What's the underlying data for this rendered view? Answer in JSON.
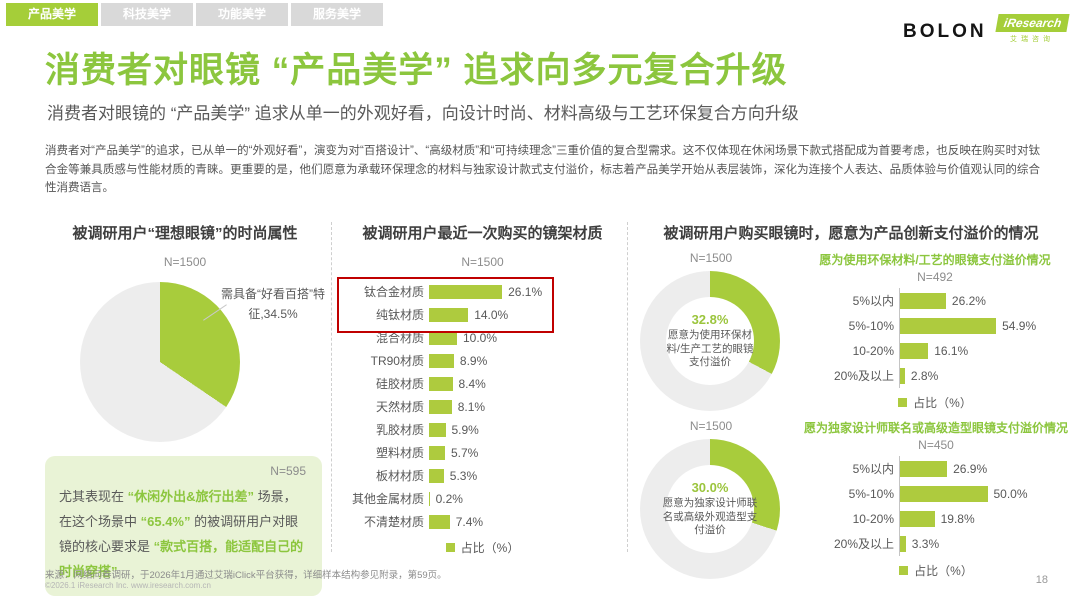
{
  "colors": {
    "accent_green": "#a5ce39",
    "bar_green": "#aecb3e",
    "title_green": "#8cc63e",
    "chart_green": "#a8cc3c",
    "chart_gray": "#ededed",
    "highlight_red": "#c00000",
    "inactive_tab": "#d9d9d9"
  },
  "tabs": [
    {
      "label": "产品美学",
      "active": true
    },
    {
      "label": "科技美学",
      "active": false
    },
    {
      "label": "功能美学",
      "active": false
    },
    {
      "label": "服务美学",
      "active": false
    }
  ],
  "brand": {
    "bolon": "BOLON",
    "iresearch": "iResearch",
    "iresearch_cn": "艾瑞咨询"
  },
  "header": {
    "title": "消费者对眼镜 “产品美学” 追求向多元复合升级",
    "subtitle": "消费者对眼镜的 “产品美学” 追求从单一的外观好看，向设计时尚、材料高级与工艺环保复合方向升级",
    "paragraph": "消费者对“产品美学”的追求，已从单一的“外观好看”，演变为对“百搭设计”、“高级材质”和“可持续理念”三重价值的复合型需求。这不仅体现在休闲场景下款式搭配成为首要考虑，也反映在购买时对钛合金等兼具质感与性能材质的青睐。更重要的是，他们愿意为承载环保理念的材料与独家设计款式支付溢价，标志着产品美学开始从表层装饰，深化为连接个人表达、品质体验与价值观认同的综合性消费语言。"
  },
  "fashion": {
    "title": "被调研用户“理想眼镜”的时尚属性",
    "n": "N=1500",
    "pie_value": 34.5,
    "pie_label": "需具备“好看百搭”特征,34.5%",
    "insight": {
      "n": "N=595",
      "p1": "尤其表现在 ",
      "p2": "“休闲外出&旅行出差”",
      "p3": " 场景，在这个场景中 ",
      "p4": "“65.4%”",
      "p5": " 的被调研用户对眼镜的核心要求是 ",
      "p6": "“款式百搭，能适配自己的时尚穿搭”"
    }
  },
  "materials": {
    "title": "被调研用户最近一次购买的镜架材质",
    "n": "N=1500",
    "legend": "占比（%）",
    "items": [
      {
        "label": "钛合金材质",
        "value": 26.1,
        "display": "26.1%"
      },
      {
        "label": "纯钛材质",
        "value": 14.0,
        "display": "14.0%"
      },
      {
        "label": "混合材质",
        "value": 10.0,
        "display": "10.0%"
      },
      {
        "label": "TR90材质",
        "value": 8.9,
        "display": "8.9%"
      },
      {
        "label": "硅胶材质",
        "value": 8.4,
        "display": "8.4%"
      },
      {
        "label": "天然材质",
        "value": 8.1,
        "display": "8.1%"
      },
      {
        "label": "乳胶材质",
        "value": 5.9,
        "display": "5.9%"
      },
      {
        "label": "塑料材质",
        "value": 5.7,
        "display": "5.7%"
      },
      {
        "label": "板材材质",
        "value": 5.3,
        "display": "5.3%"
      },
      {
        "label": "其他金属材质",
        "value": 0.2,
        "display": "0.2%"
      },
      {
        "label": "不清楚材质",
        "value": 7.4,
        "display": "7.4%"
      }
    ]
  },
  "premium": {
    "title": "被调研用户购买眼镜时，愿意为产品创新支付溢价的情况",
    "blocks": [
      {
        "n": "N=1500",
        "pct": 32.8,
        "pct_display": "32.8%",
        "donut_label": "愿意为使用环保材料/生产工艺的眼镜支付溢价",
        "subtitle": "愿为使用环保材料/工艺的眼镜支付溢价情况",
        "n2": "N=492",
        "legend": "占比（%）",
        "items": [
          {
            "label": "5%以内",
            "value": 26.2,
            "display": "26.2%"
          },
          {
            "label": "5%-10%",
            "value": 54.9,
            "display": "54.9%"
          },
          {
            "label": "10-20%",
            "value": 16.1,
            "display": "16.1%"
          },
          {
            "label": "20%及以上",
            "value": 2.8,
            "display": "2.8%"
          }
        ]
      },
      {
        "n": "N=1500",
        "pct": 30.0,
        "pct_display": "30.0%",
        "donut_label": "愿意为独家设计师联名或高级外观造型支付溢价",
        "subtitle": "愿为独家设计师联名或高级造型眼镜支付溢价情况",
        "n2": "N=450",
        "legend": "占比（%）",
        "items": [
          {
            "label": "5%以内",
            "value": 26.9,
            "display": "26.9%"
          },
          {
            "label": "5%-10%",
            "value": 50.0,
            "display": "50.0%"
          },
          {
            "label": "10-20%",
            "value": 19.8,
            "display": "19.8%"
          },
          {
            "label": "20%及以上",
            "value": 3.3,
            "display": "3.3%"
          }
        ]
      }
    ]
  },
  "footer": {
    "source": "来源：网络问卷调研，于2026年1月通过艾瑞iClick平台获得，详细样本结构参见附录，第59页。",
    "copyright": "©2026.1 iResearch Inc. www.iresearch.com.cn",
    "page": "18"
  },
  "chart_data": [
    {
      "type": "pie",
      "title": "被调研用户“理想眼镜”的时尚属性",
      "n": "N=1500",
      "unit": "%",
      "slices": [
        {
          "label": "需具备“好看百搭”特征",
          "value": 34.5
        },
        {
          "label": "其他",
          "value": 65.5
        }
      ]
    },
    {
      "type": "bar",
      "orientation": "horizontal",
      "title": "被调研用户最近一次购买的镜架材质",
      "n": "N=1500",
      "xlabel": "占比（%）",
      "categories": [
        "钛合金材质",
        "纯钛材质",
        "混合材质",
        "TR90材质",
        "硅胶材质",
        "天然材质",
        "乳胶材质",
        "塑料材质",
        "板材材质",
        "其他金属材质",
        "不清楚材质"
      ],
      "values": [
        26.1,
        14.0,
        10.0,
        8.9,
        8.4,
        8.1,
        5.9,
        5.7,
        5.3,
        0.2,
        7.4
      ],
      "highlighted_categories": [
        "钛合金材质",
        "纯钛材质"
      ]
    },
    {
      "type": "pie",
      "title": "愿意为使用环保材料/生产工艺的眼镜支付溢价",
      "n": "N=1500",
      "unit": "%",
      "slices": [
        {
          "label": "愿意支付溢价",
          "value": 32.8
        },
        {
          "label": "其他",
          "value": 67.2
        }
      ]
    },
    {
      "type": "bar",
      "orientation": "horizontal",
      "title": "愿为使用环保材料/工艺的眼镜支付溢价情况",
      "n": "N=492",
      "xlabel": "占比（%）",
      "categories": [
        "5%以内",
        "5%-10%",
        "10-20%",
        "20%及以上"
      ],
      "values": [
        26.2,
        54.9,
        16.1,
        2.8
      ]
    },
    {
      "type": "pie",
      "title": "愿意为独家设计师联名或高级外观造型支付溢价",
      "n": "N=1500",
      "unit": "%",
      "slices": [
        {
          "label": "愿意支付溢价",
          "value": 30.0
        },
        {
          "label": "其他",
          "value": 70.0
        }
      ]
    },
    {
      "type": "bar",
      "orientation": "horizontal",
      "title": "愿为独家设计师联名或高级造型眼镜支付溢价情况",
      "n": "N=450",
      "xlabel": "占比（%）",
      "categories": [
        "5%以内",
        "5%-10%",
        "10-20%",
        "20%及以上"
      ],
      "values": [
        26.9,
        50.0,
        19.8,
        3.3
      ]
    }
  ]
}
